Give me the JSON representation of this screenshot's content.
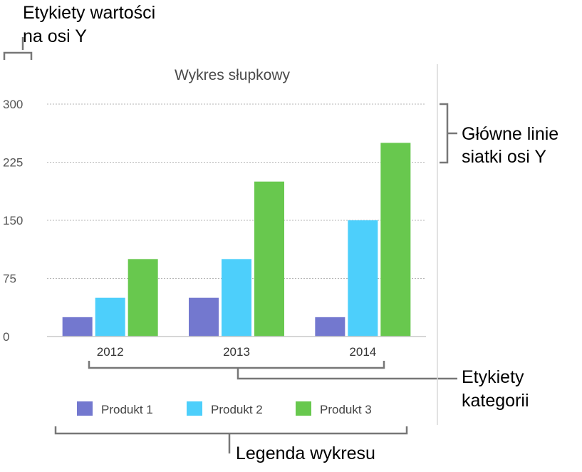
{
  "annotations": {
    "y_value_labels": [
      "Etykiety wartości",
      "na osi Y"
    ],
    "major_gridlines": [
      "Główne linie",
      "siatki osi Y"
    ],
    "category_labels": [
      "Etykiety",
      "kategorii"
    ],
    "legend": "Legenda wykresu"
  },
  "chart_data": {
    "type": "bar",
    "title": "Wykres słupkowy",
    "xlabel": "",
    "ylabel": "",
    "categories": [
      "2012",
      "2013",
      "2014"
    ],
    "series": [
      {
        "name": "Produkt 1",
        "color": "#7378cf",
        "values": [
          25,
          50,
          25
        ]
      },
      {
        "name": "Produkt 2",
        "color": "#4dcffb",
        "values": [
          50,
          100,
          150
        ]
      },
      {
        "name": "Produkt 3",
        "color": "#68c84e",
        "values": [
          100,
          200,
          250
        ]
      }
    ],
    "yticks": [
      0,
      75,
      150,
      225,
      300
    ],
    "ylim": [
      0,
      300
    ],
    "grid": true,
    "legend_position": "bottom"
  }
}
